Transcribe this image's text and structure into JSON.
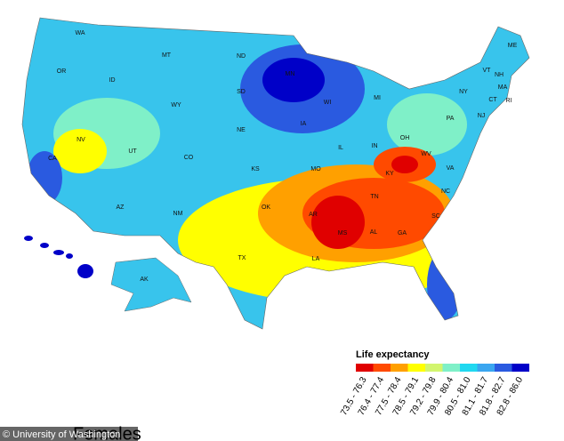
{
  "title": "Females",
  "credit": "© University of Washington",
  "legend": {
    "title": "Life expectancy",
    "bins": [
      {
        "label": "73.5 - 76.3",
        "color": "#e00000"
      },
      {
        "label": "76.4 - 77.4",
        "color": "#ff4a00"
      },
      {
        "label": "77.5 - 78.4",
        "color": "#ffa000"
      },
      {
        "label": "78.5 - 79.1",
        "color": "#ffff00"
      },
      {
        "label": "79.2 - 79.8",
        "color": "#d2f56e"
      },
      {
        "label": "79.9 - 80.4",
        "color": "#7ff0c8"
      },
      {
        "label": "80.5 - 81.0",
        "color": "#20d8f0"
      },
      {
        "label": "81.1 - 81.7",
        "color": "#3aa6f0"
      },
      {
        "label": "81.8 - 82.7",
        "color": "#2a5ae0"
      },
      {
        "label": "82.8 - 86.0",
        "color": "#0000c8"
      }
    ]
  },
  "state_labels": [
    "WA",
    "MT",
    "ND",
    "MN",
    "ME",
    "OR",
    "ID",
    "WY",
    "SD",
    "WI",
    "MI",
    "VT",
    "NH",
    "NY",
    "MA",
    "CT",
    "RI",
    "NJ",
    "PA",
    "NE",
    "IA",
    "OH",
    "IN",
    "IL",
    "NV",
    "UT",
    "CO",
    "KS",
    "MO",
    "WV",
    "KY",
    "VA",
    "CA",
    "AZ",
    "NM",
    "OK",
    "AR",
    "TN",
    "NC",
    "SC",
    "MS",
    "AL",
    "GA",
    "TX",
    "LA",
    "AK"
  ]
}
